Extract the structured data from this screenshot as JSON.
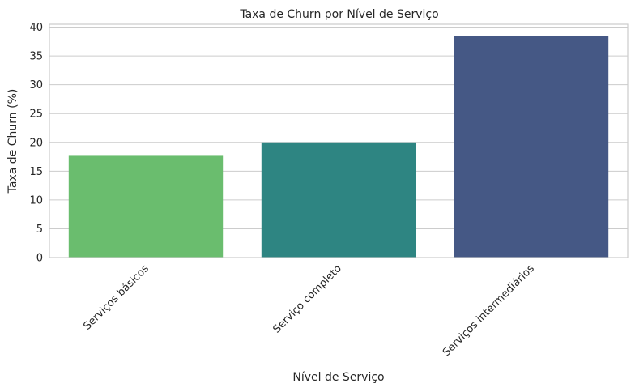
{
  "chart_data": {
    "type": "bar",
    "title": "Taxa de Churn por Nível de Serviço",
    "xlabel": "Nível de Serviço",
    "ylabel": "Taxa de Churn (%)",
    "categories": [
      "Serviços básicos",
      "Serviço completo",
      "Serviços intermediários"
    ],
    "values": [
      17.8,
      20.0,
      38.4
    ],
    "colors": [
      "#6abd6e",
      "#2e8582",
      "#455885"
    ],
    "ylim": [
      0,
      40.5
    ],
    "yticks": [
      0,
      5,
      10,
      15,
      20,
      25,
      30,
      35,
      40
    ],
    "grid": true,
    "legend": "none"
  }
}
